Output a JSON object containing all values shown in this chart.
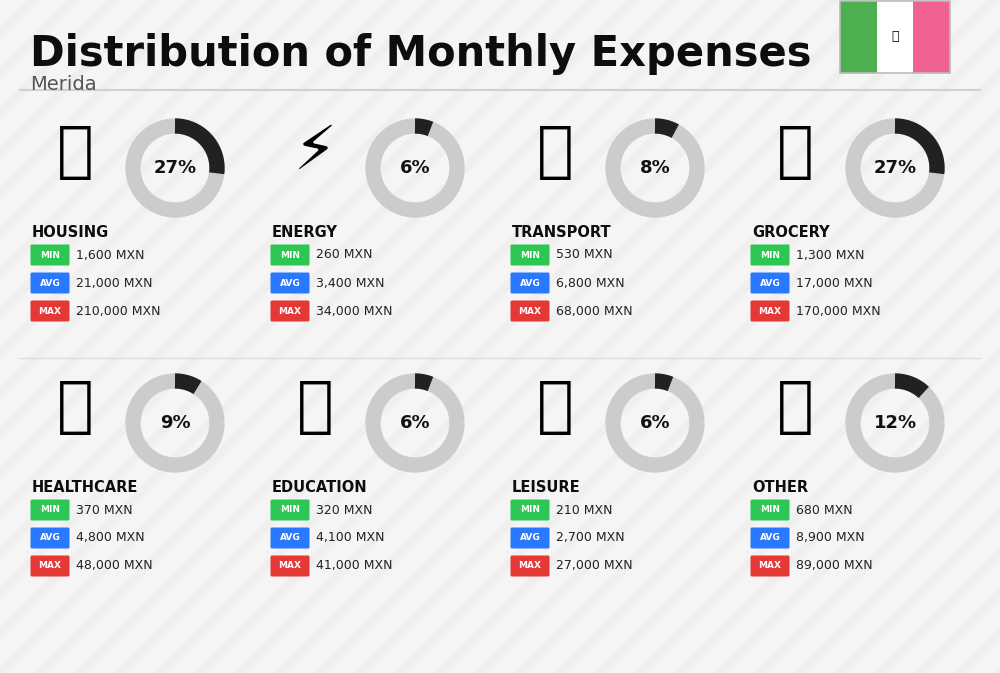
{
  "title": "Distribution of Monthly Expenses",
  "subtitle": "Merida",
  "bg_color": "#f5f5f5",
  "categories": [
    {
      "name": "HOUSING",
      "pct": 27,
      "min": "1,600 MXN",
      "avg": "21,000 MXN",
      "max": "210,000 MXN",
      "row": 0,
      "col": 0
    },
    {
      "name": "ENERGY",
      "pct": 6,
      "min": "260 MXN",
      "avg": "3,400 MXN",
      "max": "34,000 MXN",
      "row": 0,
      "col": 1
    },
    {
      "name": "TRANSPORT",
      "pct": 8,
      "min": "530 MXN",
      "avg": "6,800 MXN",
      "max": "68,000 MXN",
      "row": 0,
      "col": 2
    },
    {
      "name": "GROCERY",
      "pct": 27,
      "min": "1,300 MXN",
      "avg": "17,000 MXN",
      "max": "170,000 MXN",
      "row": 0,
      "col": 3
    },
    {
      "name": "HEALTHCARE",
      "pct": 9,
      "min": "370 MXN",
      "avg": "4,800 MXN",
      "max": "48,000 MXN",
      "row": 1,
      "col": 0
    },
    {
      "name": "EDUCATION",
      "pct": 6,
      "min": "320 MXN",
      "avg": "4,100 MXN",
      "max": "41,000 MXN",
      "row": 1,
      "col": 1
    },
    {
      "name": "LEISURE",
      "pct": 6,
      "min": "210 MXN",
      "avg": "2,700 MXN",
      "max": "27,000 MXN",
      "row": 1,
      "col": 2
    },
    {
      "name": "OTHER",
      "pct": 12,
      "min": "680 MXN",
      "avg": "8,900 MXN",
      "max": "89,000 MXN",
      "row": 1,
      "col": 3
    }
  ],
  "colors": {
    "min_bg": "#2dc653",
    "avg_bg": "#2979ff",
    "max_bg": "#e53935",
    "ring_filled": "#212121",
    "ring_empty": "#cccccc",
    "category_label": "#0d0d0d",
    "value_text": "#222222",
    "flag_green": "#4caf50",
    "flag_white": "#ffffff",
    "flag_red": "#f06292",
    "separator": "#d0d0d0"
  },
  "icon_emojis": {
    "HOUSING": "🏗",
    "ENERGY": "⚡",
    "TRANSPORT": "🚌",
    "GROCERY": "🛒",
    "HEALTHCARE": "💗",
    "EDUCATION": "🎓",
    "LEISURE": "🛍",
    "OTHER": "👛"
  }
}
